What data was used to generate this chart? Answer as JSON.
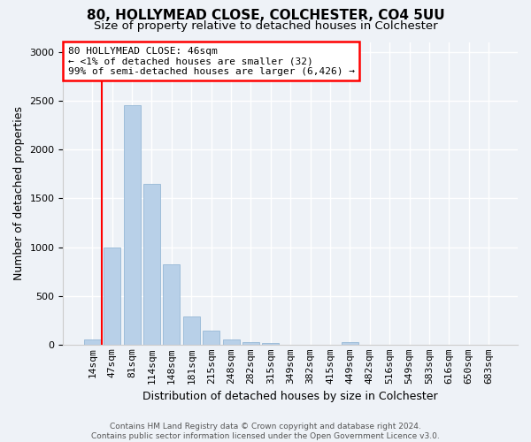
{
  "title1": "80, HOLLYMEAD CLOSE, COLCHESTER, CO4 5UU",
  "title2": "Size of property relative to detached houses in Colchester",
  "xlabel": "Distribution of detached houses by size in Colchester",
  "ylabel": "Number of detached properties",
  "categories": [
    "14sqm",
    "47sqm",
    "81sqm",
    "114sqm",
    "148sqm",
    "181sqm",
    "215sqm",
    "248sqm",
    "282sqm",
    "315sqm",
    "349sqm",
    "382sqm",
    "415sqm",
    "449sqm",
    "482sqm",
    "516sqm",
    "549sqm",
    "583sqm",
    "616sqm",
    "650sqm",
    "683sqm"
  ],
  "values": [
    55,
    1000,
    2450,
    1650,
    830,
    290,
    150,
    55,
    35,
    20,
    0,
    0,
    0,
    30,
    0,
    0,
    0,
    0,
    0,
    0,
    0
  ],
  "bar_color": "#b8d0e8",
  "bar_edge_color": "#8ab0d0",
  "annotation_text_line1": "80 HOLLYMEAD CLOSE: 46sqm",
  "annotation_text_line2": "← <1% of detached houses are smaller (32)",
  "annotation_text_line3": "99% of semi-detached houses are larger (6,426) →",
  "red_line_x": 0.5,
  "ylim": [
    0,
    3100
  ],
  "yticks": [
    0,
    500,
    1000,
    1500,
    2000,
    2500,
    3000
  ],
  "footer1": "Contains HM Land Registry data © Crown copyright and database right 2024.",
  "footer2": "Contains public sector information licensed under the Open Government Licence v3.0.",
  "background_color": "#eef2f7",
  "plot_background_color": "#eef2f7",
  "grid_color": "#ffffff",
  "title1_fontsize": 11,
  "title2_fontsize": 9.5,
  "ylabel_fontsize": 9,
  "xlabel_fontsize": 9,
  "tick_fontsize": 8,
  "ann_fontsize": 8,
  "footer_fontsize": 6.5
}
